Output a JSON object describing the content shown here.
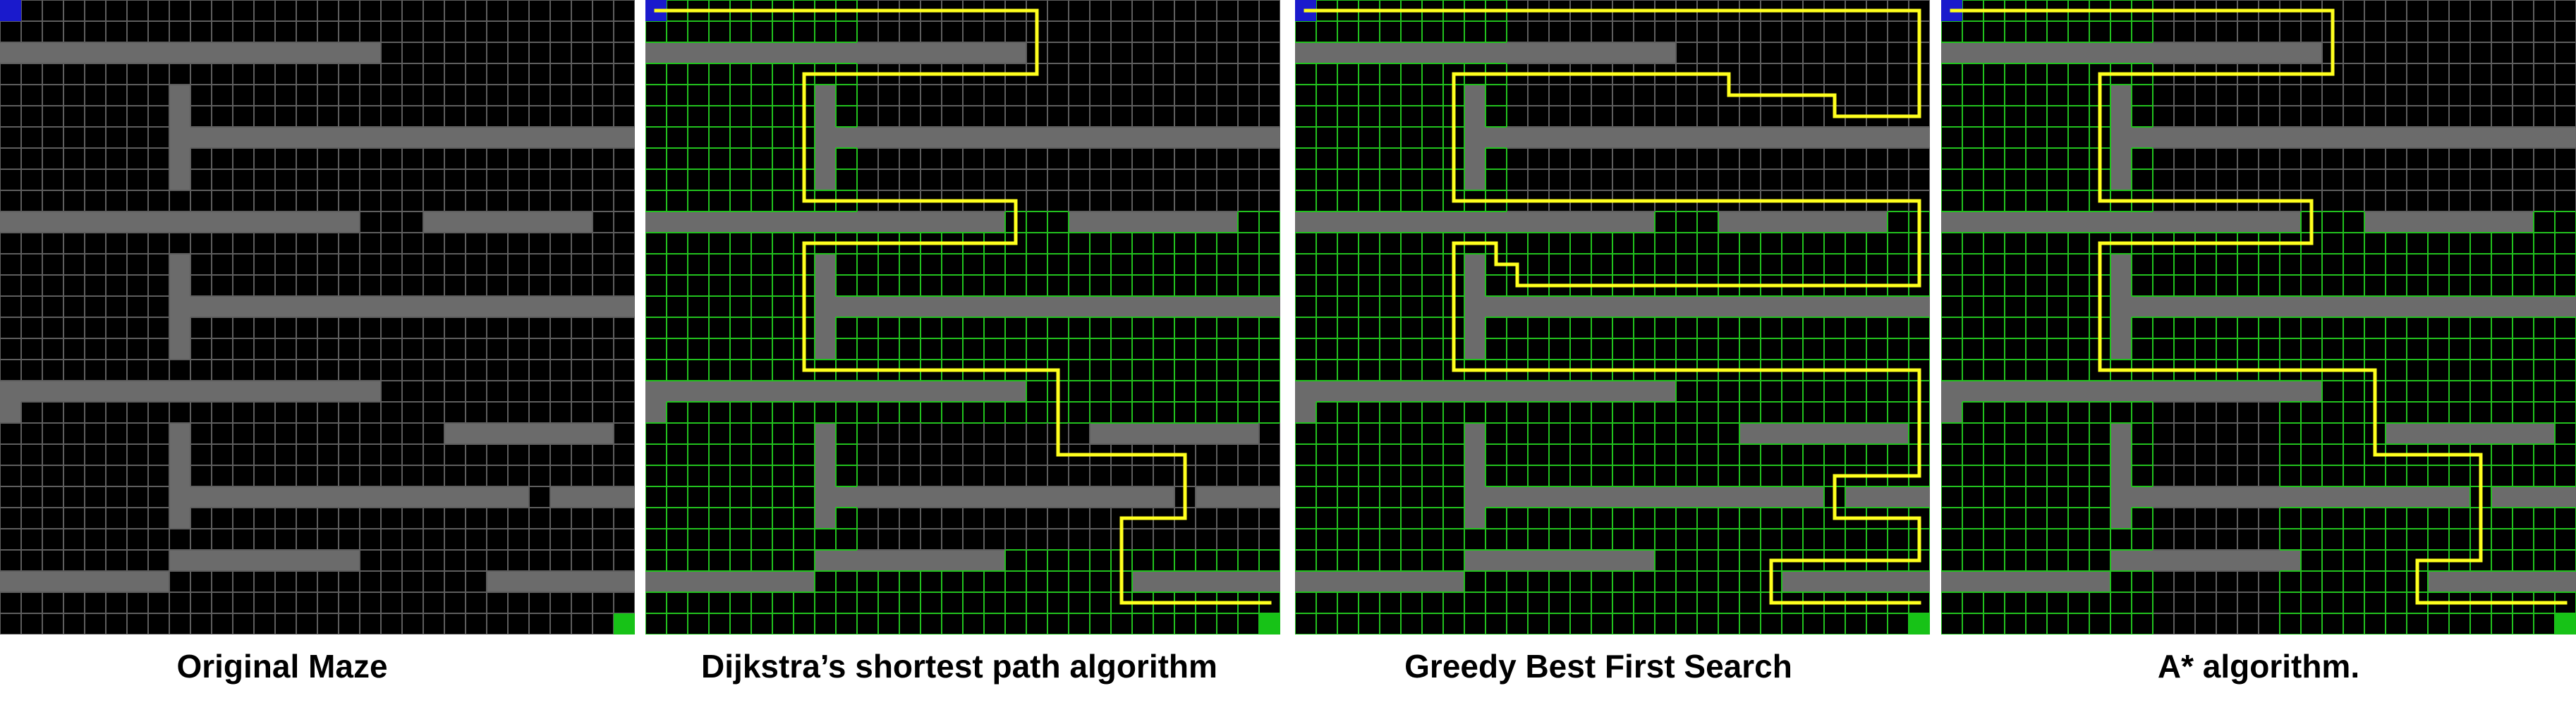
{
  "grid": {
    "cols": 30,
    "rows": 30
  },
  "colors": {
    "background": "#000000",
    "wall": "#6b6b6b",
    "grid_plain": "#5e5e5e",
    "grid_explored": "#22c21e",
    "path": "#ffff1e",
    "start": "#1a1acc",
    "goal": "#17c217",
    "separator": "#ffffff"
  },
  "maze": {
    "start": [
      0,
      0
    ],
    "goal": [
      29,
      29
    ],
    "walls": [
      {
        "row": 2,
        "from": 0,
        "to": 17
      },
      {
        "col": 8,
        "from": 4,
        "to": 8
      },
      {
        "row": 6,
        "from": 9,
        "to": 29
      },
      {
        "row": 10,
        "from": 0,
        "to": 16
      },
      {
        "row": 10,
        "from": 20,
        "to": 27
      },
      {
        "col": 8,
        "from": 12,
        "to": 16
      },
      {
        "row": 14,
        "from": 9,
        "to": 29
      },
      {
        "row": 18,
        "from": 0,
        "to": 17
      },
      {
        "row": 19,
        "from": 0,
        "to": 0
      },
      {
        "row": 20,
        "from": 21,
        "to": 28
      },
      {
        "col": 8,
        "from": 20,
        "to": 24
      },
      {
        "row": 23,
        "from": 9,
        "to": 24
      },
      {
        "row": 23,
        "from": 26,
        "to": 29
      },
      {
        "row": 26,
        "from": 8,
        "to": 16
      },
      {
        "row": 27,
        "from": 0,
        "to": 7
      },
      {
        "row": 27,
        "from": 23,
        "to": 29
      }
    ]
  },
  "panels": [
    {
      "caption": "Original Maze",
      "explored": [],
      "path": []
    },
    {
      "caption": "Dijkstra’s shortest path algorithm",
      "explored": [
        [
          0,
          0,
          30,
          10
        ],
        [
          10,
          0,
          20,
          30
        ],
        [
          26,
          0,
          30,
          30
        ]
      ],
      "path": [
        [
          0.5,
          0.5
        ],
        [
          18.5,
          0.5
        ],
        [
          18.5,
          3.5
        ],
        [
          7.5,
          3.5
        ],
        [
          7.5,
          9.5
        ],
        [
          17.5,
          9.5
        ],
        [
          17.5,
          11.5
        ],
        [
          7.5,
          11.5
        ],
        [
          7.5,
          17.5
        ],
        [
          19.5,
          17.5
        ],
        [
          19.5,
          21.5
        ],
        [
          25.5,
          21.5
        ],
        [
          25.5,
          24.5
        ],
        [
          22.5,
          24.5
        ],
        [
          22.5,
          28.5
        ],
        [
          29.5,
          28.5
        ]
      ]
    },
    {
      "caption": "Greedy Best First Search",
      "explored": [
        [
          0,
          0,
          30,
          10
        ],
        [
          10,
          0,
          19,
          30
        ],
        [
          19,
          0,
          30,
          30
        ]
      ],
      "path": [
        [
          0.5,
          0.5
        ],
        [
          29.5,
          0.5
        ],
        [
          29.5,
          5.5
        ],
        [
          25.5,
          5.5
        ],
        [
          25.5,
          4.5
        ],
        [
          20.5,
          4.5
        ],
        [
          20.5,
          3.5
        ],
        [
          7.5,
          3.5
        ],
        [
          7.5,
          9.5
        ],
        [
          29.5,
          9.5
        ],
        [
          29.5,
          13.5
        ],
        [
          10.5,
          13.5
        ],
        [
          10.5,
          12.5
        ],
        [
          9.5,
          12.5
        ],
        [
          9.5,
          11.5
        ],
        [
          7.5,
          11.5
        ],
        [
          7.5,
          17.5
        ],
        [
          29.5,
          17.5
        ],
        [
          29.5,
          22.5
        ],
        [
          25.5,
          22.5
        ],
        [
          25.5,
          24.5
        ],
        [
          29.5,
          24.5
        ],
        [
          29.5,
          26.5
        ],
        [
          22.5,
          26.5
        ],
        [
          22.5,
          28.5
        ],
        [
          29.5,
          28.5
        ]
      ]
    },
    {
      "caption": "A* algorithm.",
      "explored": [
        [
          0,
          0,
          30,
          10
        ],
        [
          10,
          0,
          18,
          30
        ],
        [
          18,
          16,
          30,
          30
        ]
      ],
      "path": [
        [
          0.5,
          0.5
        ],
        [
          18.5,
          0.5
        ],
        [
          18.5,
          3.5
        ],
        [
          7.5,
          3.5
        ],
        [
          7.5,
          9.5
        ],
        [
          17.5,
          9.5
        ],
        [
          17.5,
          11.5
        ],
        [
          7.5,
          11.5
        ],
        [
          7.5,
          17.5
        ],
        [
          20.5,
          17.5
        ],
        [
          20.5,
          21.5
        ],
        [
          25.5,
          21.5
        ],
        [
          25.5,
          26.5
        ],
        [
          22.5,
          26.5
        ],
        [
          22.5,
          28.5
        ],
        [
          29.5,
          28.5
        ]
      ]
    }
  ]
}
